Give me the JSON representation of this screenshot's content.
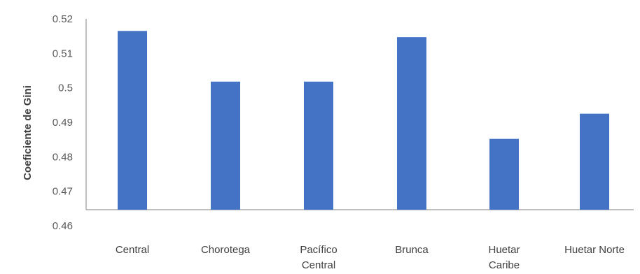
{
  "chart_data": {
    "type": "bar",
    "title": "",
    "xlabel": "",
    "ylabel": "Coeficiente de Gini",
    "categories": [
      [
        "Central"
      ],
      [
        "Chorotega"
      ],
      [
        "Pacífico",
        "Central"
      ],
      [
        "Brunca"
      ],
      [
        "Huetar",
        "Caribe"
      ],
      [
        "Huetar Norte"
      ]
    ],
    "values": [
      0.5165,
      0.5018,
      0.5018,
      0.5147,
      0.4852,
      0.4925
    ],
    "ylim": [
      0.46,
      0.52
    ],
    "yticks": [
      "0.46",
      "0.47",
      "0.48",
      "0.49",
      "0.5",
      "0.51",
      "0.52"
    ],
    "bar_color": "#4472C4",
    "grid": false,
    "legend": "none"
  }
}
